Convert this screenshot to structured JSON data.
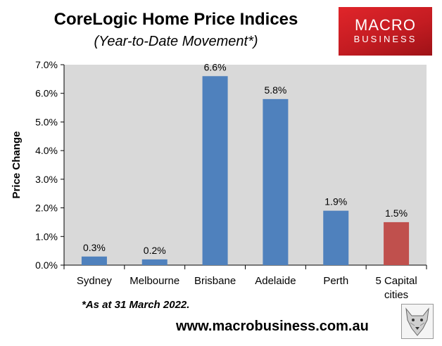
{
  "title": "CoreLogic Home Price Indices",
  "subtitle": "(Year-to-Date Movement*)",
  "logo": {
    "line1": "MACRO",
    "line2": "BUSINESS"
  },
  "footnote": "*As at 31 March 2022.",
  "source_url": "www.macrobusiness.com.au",
  "colors": {
    "bar": "#4f81bd",
    "highlight": "#c0504d",
    "plot_bg": "#d9d9d9",
    "logo": "#d72027"
  },
  "chart_data": {
    "type": "bar",
    "title": "CoreLogic Home Price Indices",
    "subtitle": "(Year-to-Date Movement*)",
    "ylabel": "Price Change",
    "xlabel": "",
    "categories": [
      "Sydney",
      "Melbourne",
      "Brisbane",
      "Adelaide",
      "Perth",
      "5 Capital cities"
    ],
    "category_lines": [
      [
        "Sydney"
      ],
      [
        "Melbourne"
      ],
      [
        "Brisbane"
      ],
      [
        "Adelaide"
      ],
      [
        "Perth"
      ],
      [
        "5 Capital",
        "cities"
      ]
    ],
    "values": [
      0.3,
      0.2,
      6.6,
      5.8,
      1.9,
      1.5
    ],
    "value_labels": [
      "0.3%",
      "0.2%",
      "6.6%",
      "5.8%",
      "1.9%",
      "1.5%"
    ],
    "highlight_index": 5,
    "ylim": [
      0,
      7
    ],
    "yticks": [
      0,
      1,
      2,
      3,
      4,
      5,
      6,
      7
    ],
    "ytick_labels": [
      "0.0%",
      "1.0%",
      "2.0%",
      "3.0%",
      "4.0%",
      "5.0%",
      "6.0%",
      "7.0%"
    ],
    "grid": false,
    "legend": "none"
  }
}
